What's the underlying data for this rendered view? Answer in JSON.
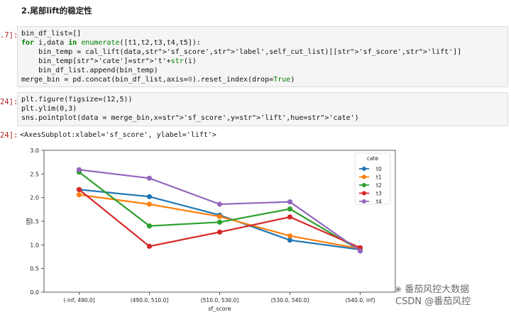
{
  "heading": "2.尾部lift的稳定性",
  "cells": [
    {
      "prompt": ".7]:",
      "lines": [
        "bin_df_list=[]",
        "for i,data in enumerate([t1,t2,t3,t4,t5]):",
        "    bin_temp = cal_lift(data,'sf_score','label',self_cut_list)[['sf_score','lift']]",
        "    bin_temp['cate']='t'+str(i)",
        "    bin_df_list.append(bin_temp)",
        "merge_bin = pd.concat(bin_df_list,axis=0).reset_index(drop=True)"
      ]
    },
    {
      "prompt": "24]:",
      "lines": [
        "plt.figure(figsize=(12,5))",
        "plt.ylim(0,3)",
        "sns.pointplot(data = merge_bin,x='sf_score',y='lift',hue='cate')"
      ]
    }
  ],
  "output": {
    "prompt": "24]:",
    "text": "<AxesSubplot:xlabel='sf_score', ylabel='lift'>"
  },
  "chart_data": {
    "type": "line",
    "categories": [
      "(-inf, 490.0]",
      "(490.0, 510.0]",
      "(510.0, 530.0]",
      "(530.0, 540.0]",
      "(540.0, inf]"
    ],
    "xlabel": "sf_score",
    "ylabel": "lift",
    "ylim": [
      0,
      3.0
    ],
    "yticks": [
      "0.0",
      "0.5",
      "1.0",
      "1.5",
      "2.0",
      "2.5",
      "3.0"
    ],
    "legend_title": "cate",
    "legend_position": "top-right",
    "grid": false,
    "series": [
      {
        "name": "t0",
        "color": "#1f77b4",
        "values": [
          2.17,
          2.02,
          1.63,
          1.1,
          0.9
        ]
      },
      {
        "name": "t1",
        "color": "#ff7f0e",
        "values": [
          2.06,
          1.86,
          1.6,
          1.19,
          0.92
        ]
      },
      {
        "name": "t2",
        "color": "#2ca02c",
        "values": [
          2.54,
          1.4,
          1.48,
          1.76,
          0.88
        ]
      },
      {
        "name": "t3",
        "color": "#d62728",
        "values": [
          2.17,
          0.97,
          1.27,
          1.59,
          0.94
        ]
      },
      {
        "name": "t4",
        "color": "#9467bd",
        "values": [
          2.59,
          2.41,
          1.86,
          1.91,
          0.87
        ]
      }
    ]
  },
  "watermark": {
    "line1": "番茄风控大数据",
    "line2": "CSDN @番茄风控"
  }
}
